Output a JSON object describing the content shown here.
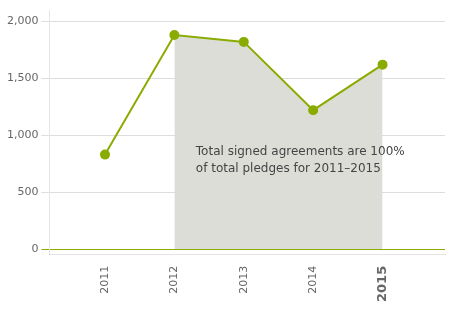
{
  "chart_data": {
    "type": "line",
    "x": [
      2011,
      2012,
      2013,
      2014,
      2015
    ],
    "series": [
      {
        "type": "line",
        "color": "#8AAB00",
        "marker": "circle",
        "values": [
          830,
          1880,
          1820,
          1220,
          1620
        ]
      },
      {
        "type": "area",
        "color": "#DDDDD8",
        "values": [
          null,
          1880,
          1820,
          1220,
          1620
        ]
      }
    ],
    "xlim": [
      2010.2,
      2015.9
    ],
    "xticks": [
      2011,
      2012,
      2013,
      2014,
      2015
    ],
    "ylim": [
      -50,
      2100
    ],
    "yticks": [
      0,
      500,
      {
        "value": 1000,
        "label": "1,000"
      },
      {
        "value": 1500,
        "label": "1,500"
      },
      {
        "value": 2000,
        "label": "2,000"
      }
    ],
    "grid": true,
    "annotations": [
      "Total signed agreements are 100%",
      "of total pledges for 2011–2015"
    ]
  }
}
